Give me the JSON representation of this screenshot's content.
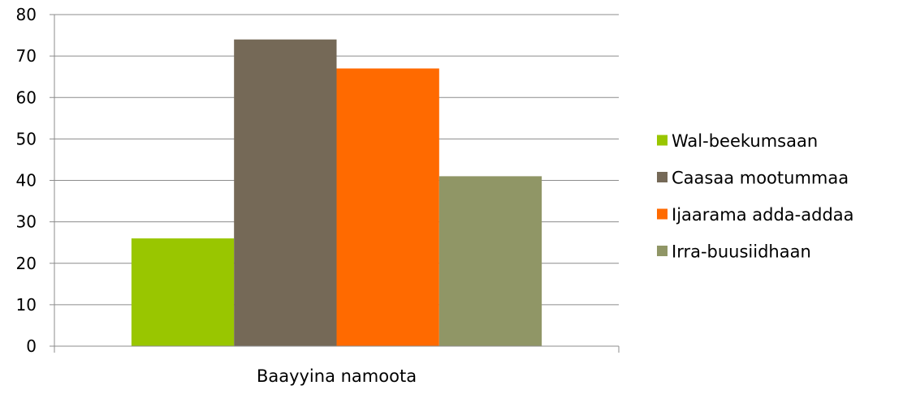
{
  "chart_data": {
    "type": "bar",
    "categories": [
      "Baayyina namoota"
    ],
    "series": [
      {
        "name": "Wal-beekumsaan",
        "values": [
          26
        ],
        "color": "#99c600"
      },
      {
        "name": "Caasaa mootummaa",
        "values": [
          74
        ],
        "color": "#756957"
      },
      {
        "name": "Ijaarama adda-addaa",
        "values": [
          67
        ],
        "color": "#ff6a00"
      },
      {
        "name": "Irra-buusiidhaan",
        "values": [
          41
        ],
        "color": "#909666"
      }
    ],
    "y_ticks": [
      "0",
      "10",
      "20",
      "30",
      "40",
      "50",
      "60",
      "70",
      "80"
    ],
    "ylim": [
      0,
      80
    ],
    "grid": true,
    "legend_position": "right",
    "title": "",
    "xlabel": "",
    "ylabel": ""
  }
}
